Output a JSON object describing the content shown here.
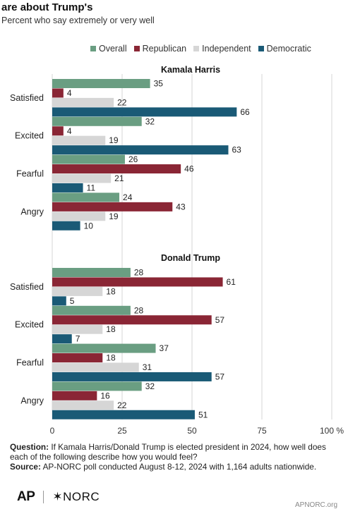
{
  "header": {
    "title": "are about Trump's",
    "subtitle": "Percent who say extremely or very well"
  },
  "legend": {
    "items": [
      {
        "label": "Overall",
        "color": "#6a9e82"
      },
      {
        "label": "Republican",
        "color": "#8a2635"
      },
      {
        "label": "Independent",
        "color": "#d6d6d6"
      },
      {
        "label": "Democratic",
        "color": "#1a5a76"
      }
    ]
  },
  "chart_data": {
    "type": "bar",
    "orientation": "horizontal",
    "xlim": [
      0,
      100
    ],
    "x_ticks": [
      "0",
      "25",
      "50",
      "75",
      "100 %"
    ],
    "x_tick_values": [
      0,
      25,
      50,
      75,
      100
    ],
    "grid": true,
    "legend_position": "top",
    "panels": [
      {
        "title": "Kamala Harris",
        "categories": [
          "Satisfied",
          "Excited",
          "Fearful",
          "Angry"
        ],
        "series": [
          {
            "name": "Overall",
            "values": [
              35,
              32,
              26,
              24
            ]
          },
          {
            "name": "Republican",
            "values": [
              4,
              4,
              46,
              43
            ]
          },
          {
            "name": "Independent",
            "values": [
              22,
              19,
              21,
              19
            ]
          },
          {
            "name": "Democratic",
            "values": [
              66,
              63,
              11,
              10
            ]
          }
        ]
      },
      {
        "title": "Donald Trump",
        "categories": [
          "Satisfied",
          "Excited",
          "Fearful",
          "Angry"
        ],
        "series": [
          {
            "name": "Overall",
            "values": [
              28,
              28,
              37,
              32
            ]
          },
          {
            "name": "Republican",
            "values": [
              61,
              57,
              18,
              16
            ]
          },
          {
            "name": "Independent",
            "values": [
              18,
              18,
              31,
              22
            ]
          },
          {
            "name": "Democratic",
            "values": [
              5,
              7,
              57,
              51
            ]
          }
        ]
      }
    ]
  },
  "notes": {
    "question_label": "Question:",
    "question": "If Kamala Harris/Donald Trump is elected president in 2024, how well does each of the following describe how you would feel?",
    "source_label": "Source:",
    "source": "AP-NORC poll conducted August 8-12, 2024 with 1,164 adults nationwide."
  },
  "footer": {
    "logo_ap": "AP",
    "logo_norc": "✶NORC",
    "credit": "APNORC.org"
  }
}
